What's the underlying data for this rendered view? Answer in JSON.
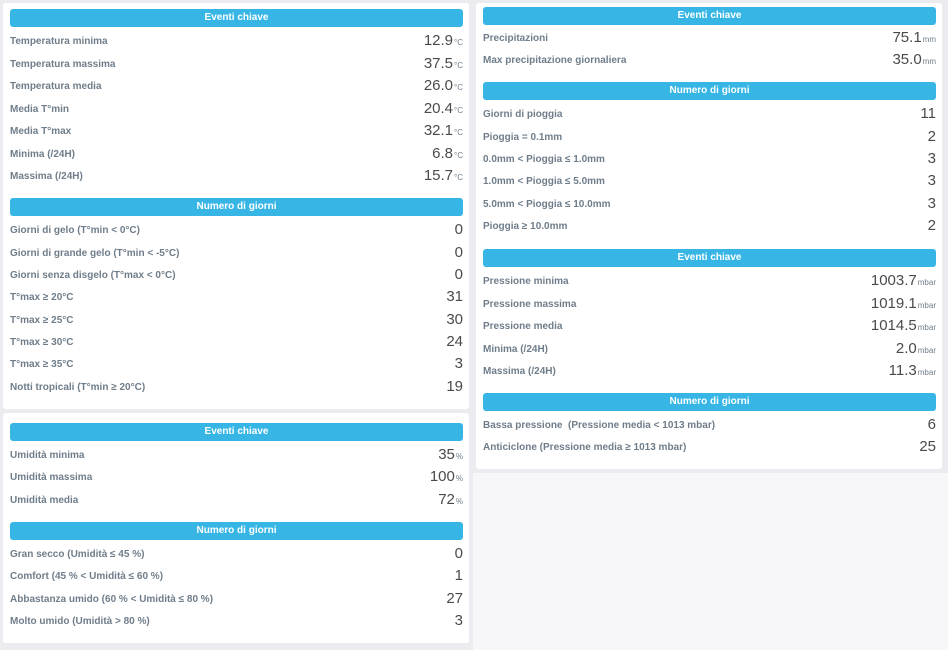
{
  "temperature": {
    "key_header": "Eventi chiave",
    "key_rows": [
      {
        "label": "Temperatura minima",
        "value": "12.9",
        "unit": "°C"
      },
      {
        "label": "Temperatura massima",
        "value": "37.5",
        "unit": "°C"
      },
      {
        "label": "Temperatura media",
        "value": "26.0",
        "unit": "°C"
      },
      {
        "label": "Media T°min",
        "value": "20.4",
        "unit": "°C"
      },
      {
        "label": "Media T°max",
        "value": "32.1",
        "unit": "°C"
      },
      {
        "label": "Minima (/24H)",
        "value": "6.8",
        "unit": "°C"
      },
      {
        "label": "Massima (/24H)",
        "value": "15.7",
        "unit": "°C"
      }
    ],
    "days_header": "Numero di giorni",
    "days_rows": [
      {
        "label": "Giorni di gelo (T°min < 0°C)",
        "value": "0"
      },
      {
        "label": "Giorni di grande gelo (T°min < -5°C)",
        "value": "0"
      },
      {
        "label": "Giorni senza disgelo (T°max < 0°C)",
        "value": "0"
      },
      {
        "label": "T°max ≥ 20°C",
        "value": "31"
      },
      {
        "label": "T°max ≥ 25°C",
        "value": "30"
      },
      {
        "label": "T°max ≥ 30°C",
        "value": "24"
      },
      {
        "label": "T°max ≥ 35°C",
        "value": "3"
      },
      {
        "label": "Notti tropicali (T°min ≥ 20°C)",
        "value": "19"
      }
    ]
  },
  "humidity": {
    "key_header": "Eventi chiave",
    "key_rows": [
      {
        "label": "Umidità minima",
        "value": "35",
        "unit": "%"
      },
      {
        "label": "Umidità massima",
        "value": "100",
        "unit": "%"
      },
      {
        "label": "Umidità media",
        "value": "72",
        "unit": "%"
      }
    ],
    "days_header": "Numero di giorni",
    "days_rows": [
      {
        "label": "Gran secco (Umidità ≤ 45 %)",
        "value": "0"
      },
      {
        "label": "Comfort (45 % < Umidità ≤ 60 %)",
        "value": "1"
      },
      {
        "label": "Abbastanza umido (60 % < Umidità ≤ 80 %)",
        "value": "27"
      },
      {
        "label": "Molto umido (Umidità > 80 %)",
        "value": "3"
      }
    ]
  },
  "rain": {
    "key_header": "Eventi chiave",
    "key_rows": [
      {
        "label": "Precipitazioni",
        "value": "75.1",
        "unit": "mm"
      },
      {
        "label": "Max precipitazione giornaliera",
        "value": "35.0",
        "unit": "mm"
      }
    ],
    "days_header": "Numero di giorni",
    "days_rows": [
      {
        "label": "Giorni di pioggia",
        "value": "11"
      },
      {
        "label": "Pioggia = 0.1mm",
        "value": "2"
      },
      {
        "label": "0.0mm < Pioggia ≤ 1.0mm",
        "value": "3"
      },
      {
        "label": "1.0mm < Pioggia ≤ 5.0mm",
        "value": "3"
      },
      {
        "label": "5.0mm < Pioggia ≤ 10.0mm",
        "value": "3"
      },
      {
        "label": "Pioggia ≥ 10.0mm",
        "value": "2"
      }
    ]
  },
  "pressure": {
    "key_header": "Eventi chiave",
    "key_rows": [
      {
        "label": "Pressione minima",
        "value": "1003.7",
        "unit": "mbar"
      },
      {
        "label": "Pressione massima",
        "value": "1019.1",
        "unit": "mbar"
      },
      {
        "label": "Pressione media",
        "value": "1014.5",
        "unit": "mbar"
      },
      {
        "label": "Minima (/24H)",
        "value": "2.0",
        "unit": "mbar"
      },
      {
        "label": "Massima (/24H)",
        "value": "11.3",
        "unit": "mbar"
      }
    ],
    "days_header": "Numero di giorni",
    "days_rows": [
      {
        "label": "Bassa pressione  (Pressione media < 1013 mbar)",
        "value": "6"
      },
      {
        "label": "Anticiclone (Pressione media ≥ 1013 mbar)",
        "value": "25"
      }
    ]
  },
  "colors": {
    "header_bg": "#37b6e6",
    "label": "#6f7d8a",
    "value": "#4a4a4a"
  }
}
